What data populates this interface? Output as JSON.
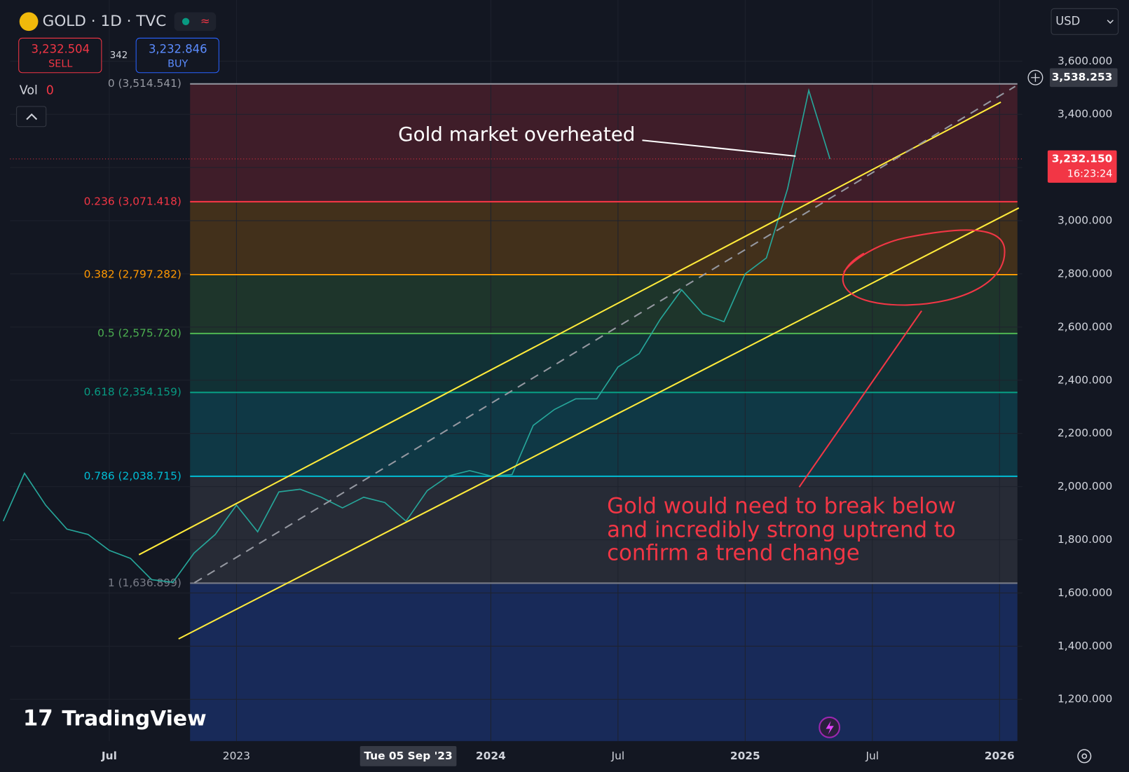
{
  "header": {
    "symbol": "GOLD · 1D · TVC",
    "sell_price": "3,232.504",
    "sell_label": "SELL",
    "spread": "342",
    "buy_price": "3,232.846",
    "buy_label": "BUY",
    "vol_label": "Vol",
    "vol_value": "0",
    "currency": "USD",
    "logo": "TradingView"
  },
  "chart_data": {
    "type": "line",
    "color": "#26a69a",
    "x": [
      "2022-02",
      "2022-03",
      "2022-04",
      "2022-05",
      "2022-06",
      "2022-07",
      "2022-08",
      "2022-09",
      "2022-10",
      "2022-11",
      "2022-12",
      "2023-01",
      "2023-02",
      "2023-03",
      "2023-04",
      "2023-05",
      "2023-06",
      "2023-07",
      "2023-08",
      "2023-09",
      "2023-10",
      "2023-11",
      "2023-12",
      "2024-01",
      "2024-02",
      "2024-03",
      "2024-04",
      "2024-05",
      "2024-06",
      "2024-07",
      "2024-08",
      "2024-09",
      "2024-10",
      "2024-11",
      "2024-12",
      "2025-01",
      "2025-02",
      "2025-03",
      "2025-04",
      "2025-05"
    ],
    "values": [
      1870,
      2050,
      1930,
      1840,
      1820,
      1760,
      1730,
      1650,
      1640,
      1750,
      1820,
      1930,
      1830,
      1980,
      1990,
      1960,
      1920,
      1960,
      1940,
      1870,
      1985,
      2040,
      2060,
      2040,
      2045,
      2230,
      2290,
      2330,
      2330,
      2450,
      2500,
      2630,
      2740,
      2650,
      2620,
      2800,
      2860,
      3120,
      3490,
      3232
    ],
    "xlim": [
      2022.11,
      2026.09
    ],
    "xticks": [
      {
        "value": "2022-07",
        "label": "Jul"
      },
      {
        "value": "2023-01",
        "label": "2023"
      },
      {
        "value": "2024-01",
        "label": "2024"
      },
      {
        "value": "2024-07",
        "label": "Jul"
      },
      {
        "value": "2025-01",
        "label": "2025"
      },
      {
        "value": "2025-07",
        "label": "Jul"
      },
      {
        "value": "2026-01",
        "label": "2026"
      }
    ],
    "ylim": [
      1043,
      3830
    ],
    "yticks": [
      {
        "value": 1200,
        "label": "1,200.000"
      },
      {
        "value": 1400,
        "label": "1,400.000"
      },
      {
        "value": 1600,
        "label": "1,600.000"
      },
      {
        "value": 1800,
        "label": "1,800.000"
      },
      {
        "value": 2000,
        "label": "2,000.000"
      },
      {
        "value": 2200,
        "label": "2,200.000"
      },
      {
        "value": 2400,
        "label": "2,400.000"
      },
      {
        "value": 2600,
        "label": "2,600.000"
      },
      {
        "value": 2800,
        "label": "2,800.000"
      },
      {
        "value": 3000,
        "label": "3,000.000"
      },
      {
        "value": 3200,
        "label": "3,200.000"
      },
      {
        "value": 3400,
        "label": "3,400.000"
      },
      {
        "value": 3600,
        "label": "3,600.000"
      }
    ],
    "grid": true,
    "fib_levels": [
      {
        "value": 3514.541,
        "label": "0 (3,514.541)",
        "color": "#9598a1"
      },
      {
        "value": 3071.418,
        "label": "0.236 (3,071.418)",
        "color": "#f23645"
      },
      {
        "value": 2797.282,
        "label": "0.382 (2,797.282)",
        "color": "#ff9800"
      },
      {
        "value": 2575.72,
        "label": "0.5 (2,575.720)",
        "color": "#4caf50"
      },
      {
        "value": 2354.159,
        "label": "0.618 (2,354.159)",
        "color": "#089981"
      },
      {
        "value": 2038.715,
        "label": "0.786 (2,038.715)",
        "color": "#00bcd4"
      },
      {
        "value": 1636.899,
        "label": "1 (1,636.899)",
        "color": "#787b86"
      }
    ],
    "last_price": {
      "value": 3232.15,
      "label": "3,232.150",
      "countdown": "16:23:24"
    },
    "crosshair_price": {
      "value": 3538.253,
      "label": "3,538.253"
    },
    "crosshair_date": "Tue 05 Sep '23",
    "annotations": [
      "Gold market overheated",
      "Gold would need to break below",
      "and incredibly strong uptrend to",
      "confirm a trend change"
    ]
  }
}
